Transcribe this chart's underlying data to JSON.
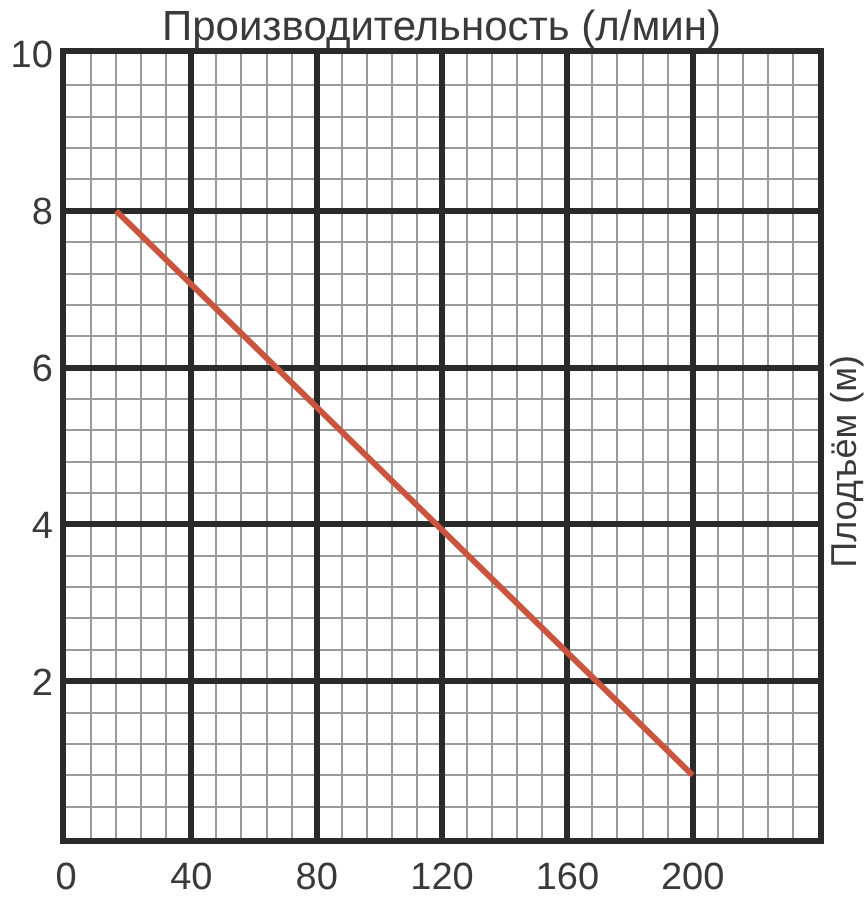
{
  "chart_data": {
    "type": "line",
    "xlabel": "Производительность (л/мин)",
    "ylabel": "Плодъём (м)",
    "series": [
      {
        "color": "#c9553f",
        "x": [
          16,
          200
        ],
        "values": [
          8,
          0.8
        ]
      }
    ],
    "xlim": [
      0,
      240
    ],
    "xticks": [
      0,
      {
        "value": 8,
        "label": null
      },
      {
        "value": 16,
        "label": null
      },
      {
        "value": 24,
        "label": null
      },
      {
        "value": 32,
        "label": null
      },
      40,
      {
        "value": 48,
        "label": null
      },
      {
        "value": 56,
        "label": null
      },
      {
        "value": 64,
        "label": null
      },
      {
        "value": 72,
        "label": null
      },
      80,
      {
        "value": 88,
        "label": null
      },
      {
        "value": 96,
        "label": null
      },
      {
        "value": 104,
        "label": null
      },
      {
        "value": 112,
        "label": null
      },
      120,
      {
        "value": 128,
        "label": null
      },
      {
        "value": 136,
        "label": null
      },
      {
        "value": 144,
        "label": null
      },
      {
        "value": 152,
        "label": null
      },
      160,
      {
        "value": 168,
        "label": null
      },
      {
        "value": 176,
        "label": null
      },
      {
        "value": 184,
        "label": null
      },
      {
        "value": 192,
        "label": null
      },
      200,
      {
        "value": 208,
        "label": null
      },
      {
        "value": 216,
        "label": null
      },
      {
        "value": 224,
        "label": null
      },
      {
        "value": 232,
        "label": null
      },
      {
        "value": 240,
        "label": null
      }
    ],
    "ylim": [
      0,
      10
    ],
    "yticks": [
      {
        "value": 0,
        "label": null
      },
      {
        "value": 0.4,
        "label": null
      },
      {
        "value": 0.8,
        "label": null
      },
      {
        "value": 1.2,
        "label": null
      },
      {
        "value": 1.6,
        "label": null
      },
      2,
      {
        "value": 2.4,
        "label": null
      },
      {
        "value": 2.8,
        "label": null
      },
      {
        "value": 3.2,
        "label": null
      },
      {
        "value": 3.6,
        "label": null
      },
      4,
      {
        "value": 4.4,
        "label": null
      },
      {
        "value": 4.8,
        "label": null
      },
      {
        "value": 5.2,
        "label": null
      },
      {
        "value": 5.6,
        "label": null
      },
      6,
      {
        "value": 6.4,
        "label": null
      },
      {
        "value": 6.8,
        "label": null
      },
      {
        "value": 7.2,
        "label": null
      },
      {
        "value": 7.6,
        "label": null
      },
      8,
      {
        "value": 8.4,
        "label": null
      },
      {
        "value": 8.8,
        "label": null
      },
      {
        "value": 9.2,
        "label": null
      },
      {
        "value": 9.6,
        "label": null
      },
      10
    ],
    "grid": true,
    "marker": "none",
    "line_style": "solid"
  }
}
